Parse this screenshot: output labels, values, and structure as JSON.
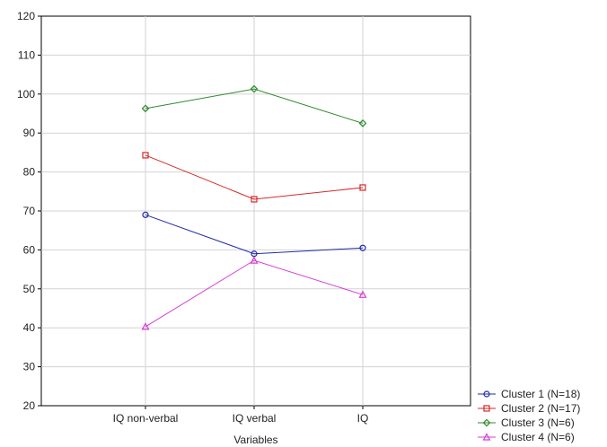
{
  "chart_data": {
    "type": "line",
    "title": "",
    "xlabel": "Variables",
    "ylabel": "",
    "categories": [
      "IQ non-verbal",
      "IQ verbal",
      "IQ"
    ],
    "ylim": [
      20,
      120
    ],
    "yticks": [
      20,
      30,
      40,
      50,
      60,
      70,
      80,
      90,
      100,
      110,
      120
    ],
    "grid": true,
    "legend_position": "bottom-right",
    "series": [
      {
        "name": "Cluster  1 (N=18)",
        "values": [
          69,
          59,
          60.5
        ],
        "color": "#1f2aa8",
        "marker": "circle"
      },
      {
        "name": "Cluster  2 (N=17)",
        "values": [
          84.3,
          73,
          76
        ],
        "color": "#d42a2a",
        "marker": "square"
      },
      {
        "name": "Cluster  3 (N=6)",
        "values": [
          96.3,
          101.3,
          92.5
        ],
        "color": "#2e8b2e",
        "marker": "diamond"
      },
      {
        "name": "Cluster  4 (N=6)",
        "values": [
          40.3,
          57.3,
          48.5
        ],
        "color": "#d63fd6",
        "marker": "triangle"
      }
    ]
  }
}
